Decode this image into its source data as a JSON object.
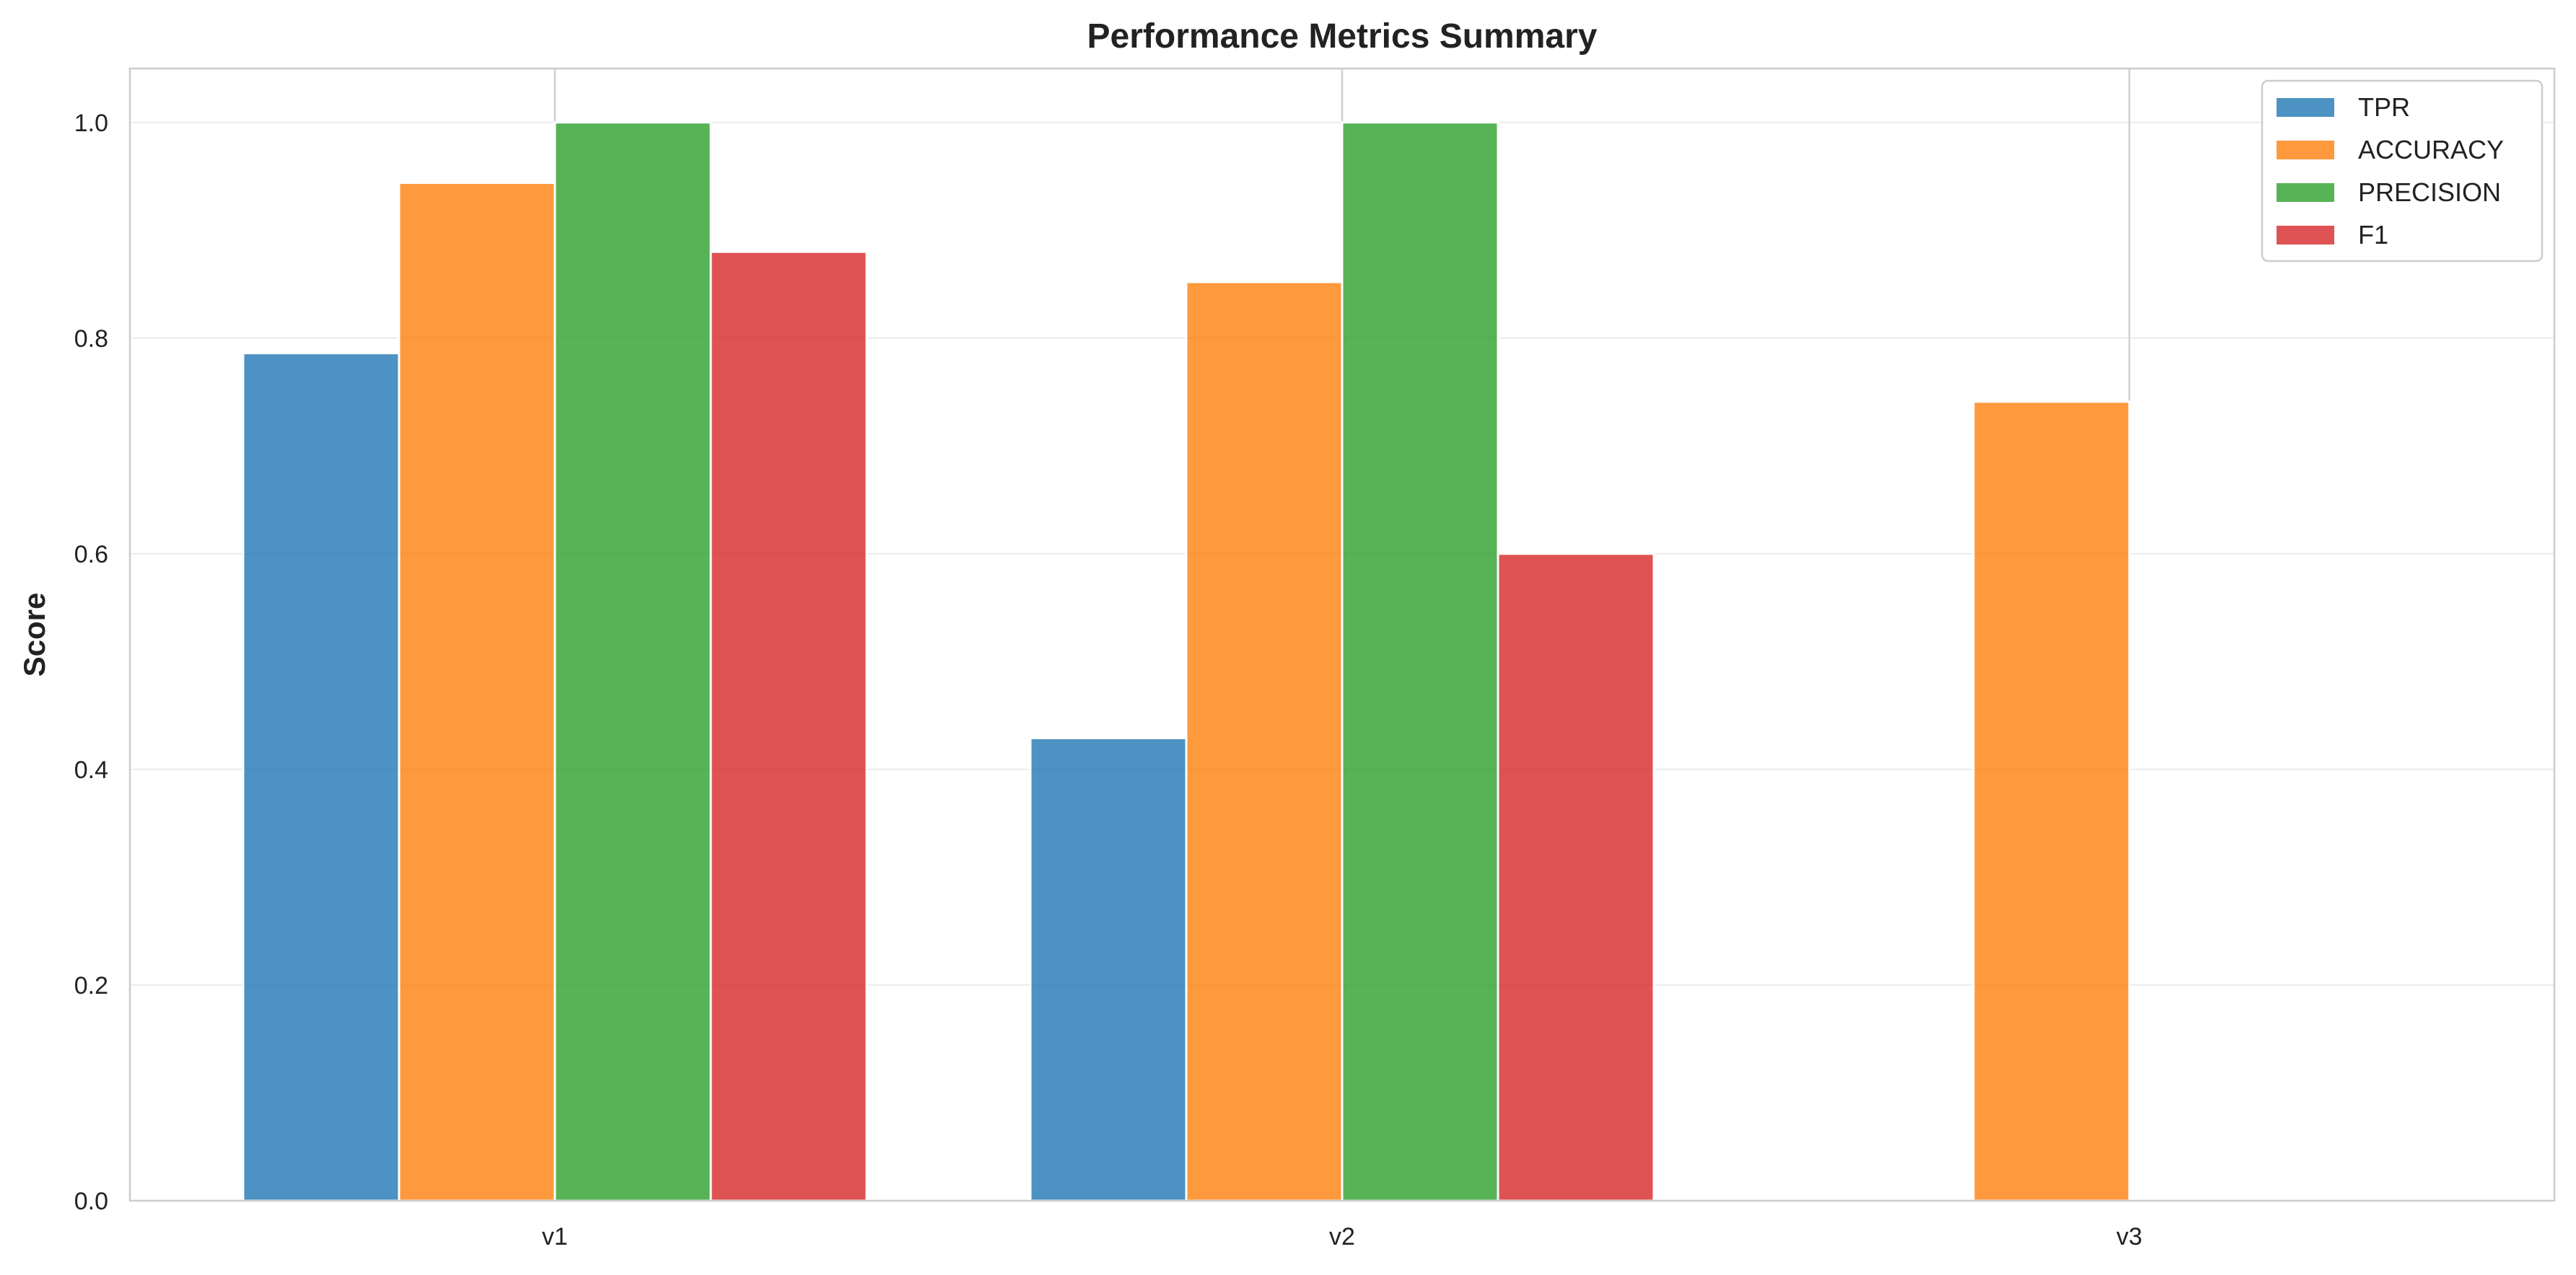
{
  "chart_data": {
    "type": "bar",
    "title": "Performance Metrics Summary",
    "xlabel": "",
    "ylabel": "Score",
    "categories": [
      "v1",
      "v2",
      "v3"
    ],
    "ylim": [
      0,
      1.05
    ],
    "yticks": [
      "0.0",
      "0.2",
      "0.4",
      "0.6",
      "0.8",
      "1.0"
    ],
    "ytick_values": [
      0,
      0.2,
      0.4,
      0.6,
      0.8,
      1.0
    ],
    "grid": true,
    "legend_position": "top-right",
    "series": [
      {
        "name": "TPR",
        "color": "#1f77b4",
        "values": [
          0.786,
          0.429,
          null
        ]
      },
      {
        "name": "ACCURACY",
        "color": "#ff7f0e",
        "values": [
          0.944,
          0.852,
          0.741
        ]
      },
      {
        "name": "PRECISION",
        "color": "#2ca02c",
        "values": [
          1.0,
          1.0,
          null
        ]
      },
      {
        "name": "F1",
        "color": "#d62728",
        "values": [
          0.88,
          0.6,
          null
        ]
      }
    ]
  }
}
